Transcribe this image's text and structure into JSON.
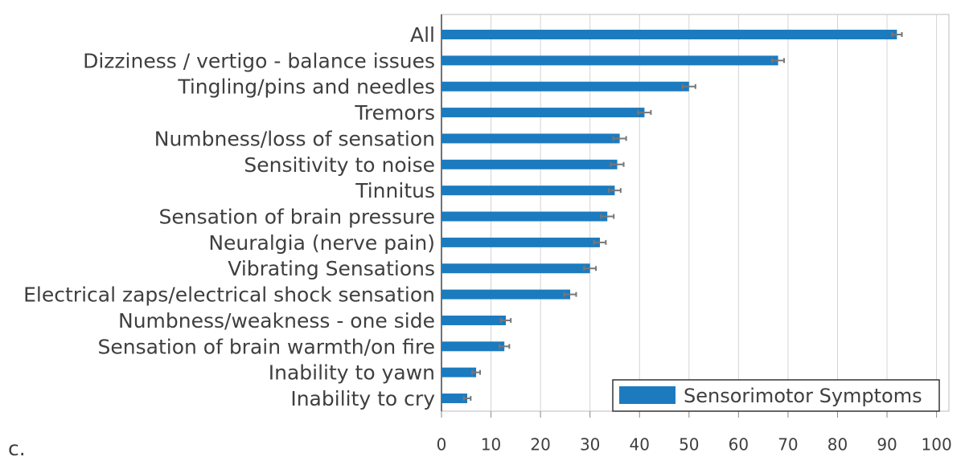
{
  "chart_data": {
    "type": "bar",
    "orientation": "horizontal",
    "panel_label": "c.",
    "categories": [
      "All",
      "Dizziness / vertigo - balance issues",
      "Tingling/pins and needles",
      "Tremors",
      "Numbness/loss of sensation",
      "Sensitivity to noise",
      "Tinnitus",
      "Sensation of brain pressure",
      "Neuralgia (nerve pain)",
      "Vibrating Sensations",
      "Electrical zaps/electrical shock sensation",
      "Numbness/weakness - one side",
      "Sensation of brain warmth/on fire",
      "Inability to yawn",
      "Inability to cry"
    ],
    "series": [
      {
        "name": "Sensorimotor Symptoms",
        "color": "#1c7bbf",
        "values": [
          92,
          68,
          50,
          41,
          36,
          35.5,
          35,
          33.5,
          32,
          30,
          26,
          13,
          12.7,
          7,
          5.2
        ],
        "errors": [
          1,
          1.2,
          1.3,
          1.3,
          1.3,
          1.3,
          1.2,
          1.3,
          1.2,
          1.2,
          1.2,
          1,
          1,
          0.8,
          0.7
        ]
      }
    ],
    "xlim": [
      0,
      102.5
    ],
    "xticks": [
      0,
      10,
      20,
      30,
      40,
      50,
      60,
      70,
      80,
      90,
      100
    ],
    "grid": true,
    "legend": "lower right"
  }
}
